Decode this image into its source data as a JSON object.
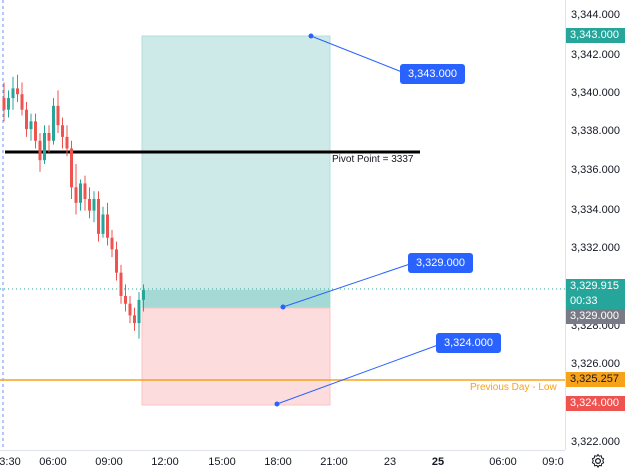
{
  "price_scale": {
    "ticks": [
      "3,344.000",
      "3,342.000",
      "3,340.000",
      "3,338.000",
      "3,336.000",
      "3,334.000",
      "3,332.000",
      "3,328.000",
      "3,326.000",
      "3,322.000"
    ],
    "tags": {
      "target": "3,343.000",
      "last": "3,329.915",
      "countdown": "00:33",
      "entry": "3,329.000",
      "prev_day_low": "3,325.257",
      "stop": "3,324.000"
    }
  },
  "time_scale": {
    "labels": [
      "3:30",
      "06:00",
      "09:00",
      "12:00",
      "15:00",
      "18:00",
      "21:00",
      "23",
      "25",
      "06:00",
      "09:0"
    ]
  },
  "drawings": {
    "target_callout": "3,343.000",
    "entry_callout": "3,329.000",
    "stop_callout": "3,324.000",
    "pivot_label": "Pivot Point = 3337",
    "prev_day_label": "Previous Day - Low"
  },
  "colors": {
    "bull": "#26a69a",
    "bear": "#ef5350",
    "profit_zone": "#cdeae8",
    "loss_zone": "#fcdcdc",
    "accent": "#2962ff",
    "prev_day": "#f7a21b"
  },
  "candles": [
    [
      3339.8,
      3340.6,
      3338.6,
      3339.2
    ],
    [
      3339.2,
      3340.2,
      3338.8,
      3339.8
    ],
    [
      3339.8,
      3340.9,
      3339.2,
      3340.3
    ],
    [
      3340.3,
      3341.0,
      3339.6,
      3340.0
    ],
    [
      3340.0,
      3340.6,
      3338.9,
      3339.2
    ],
    [
      3339.2,
      3339.6,
      3337.8,
      3338.2
    ],
    [
      3338.2,
      3339.0,
      3337.6,
      3338.6
    ],
    [
      3338.6,
      3339.0,
      3337.2,
      3337.6
    ],
    [
      3337.6,
      3338.0,
      3336.0,
      3336.6
    ],
    [
      3336.6,
      3338.4,
      3336.4,
      3338.0
    ],
    [
      3338.0,
      3338.4,
      3337.0,
      3337.6
    ],
    [
      3337.6,
      3339.8,
      3337.4,
      3339.4
    ],
    [
      3339.4,
      3340.2,
      3338.0,
      3338.4
    ],
    [
      3338.4,
      3338.8,
      3337.2,
      3337.8
    ],
    [
      3337.8,
      3338.4,
      3336.8,
      3337.2
    ],
    [
      3337.2,
      3337.6,
      3334.6,
      3335.2
    ],
    [
      3335.2,
      3336.4,
      3333.8,
      3334.4
    ],
    [
      3334.4,
      3335.6,
      3334.0,
      3335.4
    ],
    [
      3335.4,
      3335.8,
      3334.0,
      3334.6
    ],
    [
      3334.6,
      3335.2,
      3333.6,
      3334.0
    ],
    [
      3334.0,
      3335.0,
      3333.4,
      3334.6
    ],
    [
      3334.6,
      3335.0,
      3332.4,
      3332.8
    ],
    [
      3332.8,
      3334.2,
      3332.6,
      3333.8
    ],
    [
      3333.8,
      3334.4,
      3332.2,
      3332.6
    ],
    [
      3332.6,
      3333.0,
      3331.6,
      3332.0
    ],
    [
      3332.0,
      3332.4,
      3330.4,
      3330.8
    ],
    [
      3330.8,
      3331.2,
      3329.2,
      3329.6
    ],
    [
      3329.6,
      3330.2,
      3328.8,
      3329.2
    ],
    [
      3329.2,
      3329.6,
      3328.2,
      3328.6
    ],
    [
      3328.6,
      3329.0,
      3327.8,
      3328.2
    ],
    [
      3328.2,
      3329.8,
      3327.4,
      3329.4
    ],
    [
      3329.4,
      3330.2,
      3328.8,
      3329.9
    ]
  ]
}
